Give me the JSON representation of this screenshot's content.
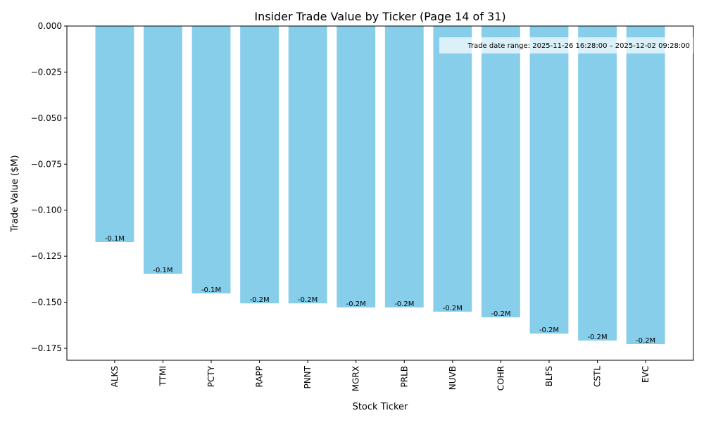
{
  "chart_data": {
    "type": "bar",
    "title": "Insider Trade Value by Ticker (Page 14 of 31)",
    "xlabel": "Stock Ticker",
    "ylabel": "Trade Value ($M)",
    "categories": [
      "ALKS",
      "TTMI",
      "PCTY",
      "RAPP",
      "PNNT",
      "MGRX",
      "PRLB",
      "NUVB",
      "COHR",
      "BLFS",
      "CSTL",
      "EVC"
    ],
    "values": [
      -0.1173,
      -0.1345,
      -0.1452,
      -0.1506,
      -0.1506,
      -0.1528,
      -0.1528,
      -0.1551,
      -0.1582,
      -0.167,
      -0.1708,
      -0.1727
    ],
    "data_labels": [
      "-0.1M",
      "-0.1M",
      "-0.1M",
      "-0.2M",
      "-0.2M",
      "-0.2M",
      "-0.2M",
      "-0.2M",
      "-0.2M",
      "-0.2M",
      "-0.2M",
      "-0.2M"
    ],
    "ylim": [
      -0.1815,
      0
    ],
    "yticks": [
      0,
      -0.025,
      -0.05,
      -0.075,
      -0.1,
      -0.125,
      -0.15,
      -0.175
    ],
    "ytick_labels": [
      "0.000",
      "−0.025",
      "−0.050",
      "−0.075",
      "−0.100",
      "−0.125",
      "−0.150",
      "−0.175"
    ],
    "bar_color": "#87ceeb",
    "grid": false,
    "annotation": "Trade date range: 2025-11-26 16:28:00 – 2025-12-02 09:28:00",
    "annotation_placement": "top-right"
  }
}
